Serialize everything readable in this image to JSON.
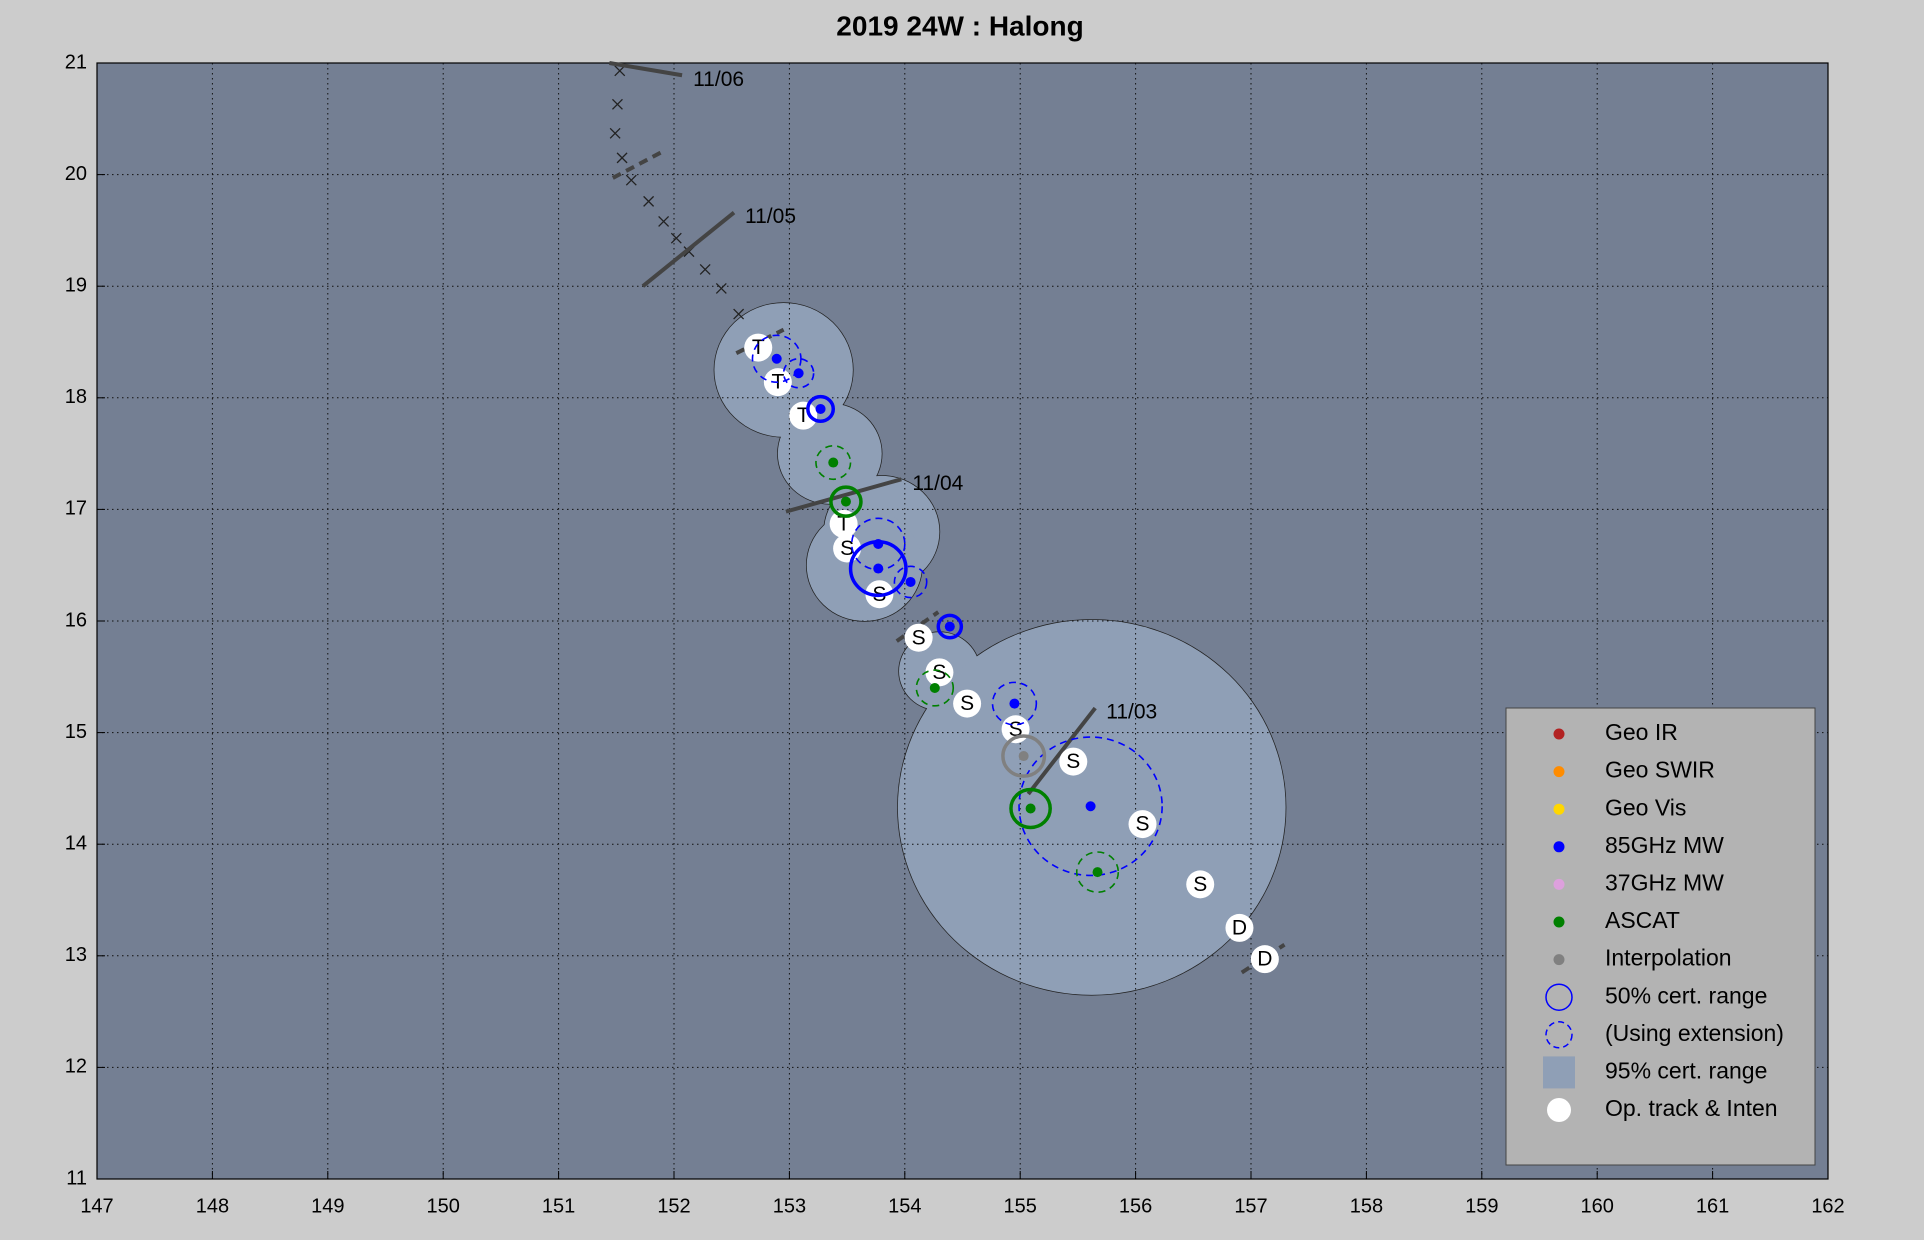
{
  "chart_data": {
    "type": "scatter",
    "title": "2019  24W :  Halong",
    "xlim": [
      147,
      162
    ],
    "ylim": [
      11,
      21
    ],
    "xticks": [
      147,
      148,
      149,
      150,
      151,
      152,
      153,
      154,
      155,
      156,
      157,
      158,
      159,
      160,
      161,
      162
    ],
    "yticks": [
      11,
      12,
      13,
      14,
      15,
      16,
      17,
      18,
      19,
      20,
      21
    ],
    "grid": true,
    "legend": "lower right",
    "background": "#747f93",
    "series": [
      {
        "name": "Geo IR",
        "color": "#b22222",
        "x": [],
        "y": [],
        "radius": [],
        "dashed": []
      },
      {
        "name": "Geo SWIR",
        "color": "#ff8c00",
        "x": [],
        "y": [],
        "radius": [],
        "dashed": []
      },
      {
        "name": "Geo Vis",
        "color": "#ffd700",
        "x": [],
        "y": [],
        "radius": [],
        "dashed": []
      },
      {
        "name": "85GHz MW",
        "color": "#0000ff",
        "x": [
          152.89,
          153.08,
          153.27,
          153.77,
          153.77,
          154.05,
          154.39,
          154.95,
          155.61
        ],
        "y": [
          18.35,
          18.22,
          17.9,
          16.69,
          16.47,
          16.35,
          15.95,
          15.26,
          14.34
        ],
        "radius": [
          0.21,
          0.13,
          0.11,
          0.23,
          0.24,
          0.14,
          0.1,
          0.19,
          0.62
        ],
        "dashed": [
          true,
          true,
          false,
          true,
          false,
          true,
          false,
          true,
          true
        ]
      },
      {
        "name": "37GHz MW",
        "color": "#dda0dd",
        "x": [],
        "y": [],
        "radius": [],
        "dashed": []
      },
      {
        "name": "ASCAT",
        "color": "#008000",
        "x": [
          153.38,
          153.49,
          154.26,
          155.09,
          155.67
        ],
        "y": [
          17.42,
          17.07,
          15.4,
          14.32,
          13.75
        ],
        "radius": [
          0.15,
          0.13,
          0.16,
          0.17,
          0.18
        ],
        "dashed": [
          true,
          false,
          true,
          false,
          true
        ]
      },
      {
        "name": "Interpolation",
        "color": "#808080",
        "x": [
          155.03
        ],
        "y": [
          14.79
        ],
        "radius": [
          0.18
        ],
        "dashed": [
          false
        ]
      }
    ],
    "cert_50": {
      "name": "50% cert. range",
      "color": "#0000ff"
    },
    "cert_ext": {
      "name": "(Using extension)",
      "color": "#0000ff"
    },
    "cert_95": {
      "name": "95% cert. range",
      "color": "#8f9fb6",
      "x": [
        152.95,
        153.35,
        153.8,
        153.65,
        154.3,
        155.62
      ],
      "y": [
        18.25,
        17.5,
        16.8,
        16.5,
        15.55,
        14.33
      ],
      "radius": [
        0.6,
        0.45,
        0.5,
        0.5,
        0.35,
        1.68
      ]
    },
    "track": {
      "name": "Op. track & Inten",
      "color": "#ffffff",
      "x": [
        152.73,
        152.9,
        153.12,
        153.47,
        153.5,
        153.78,
        154.12,
        154.3,
        154.54,
        154.96,
        155.46,
        156.06,
        156.56,
        156.9,
        157.12
      ],
      "y": [
        18.45,
        18.14,
        17.84,
        16.87,
        16.65,
        16.24,
        15.85,
        15.54,
        15.26,
        15.03,
        14.74,
        14.18,
        13.64,
        13.25,
        12.97
      ],
      "labels": [
        "T",
        "T",
        "T",
        "T",
        "S",
        "S",
        "S",
        "S",
        "S",
        "S",
        "S",
        "S",
        "S",
        "D",
        "D"
      ]
    },
    "forecast": {
      "x": [
        151.53,
        151.51,
        151.49,
        151.55,
        151.63,
        151.78,
        151.91,
        152.02,
        152.13,
        152.27,
        152.41,
        152.56
      ],
      "y": [
        20.93,
        20.63,
        20.37,
        20.15,
        19.95,
        19.76,
        19.58,
        19.43,
        19.31,
        19.15,
        18.98,
        18.75
      ]
    },
    "dates": [
      {
        "label": "11/06",
        "x": [
          151.44,
          152.07
        ],
        "y": [
          21.0,
          20.89
        ]
      },
      {
        "label": "11/05",
        "x": [
          151.73,
          152.52
        ],
        "y": [
          19.0,
          19.66
        ]
      },
      {
        "label": "11/04",
        "x": [
          152.97,
          153.97
        ],
        "y": [
          16.98,
          17.27
        ]
      },
      {
        "label": "11/03",
        "x": [
          155.07,
          155.65
        ],
        "y": [
          14.45,
          15.22
        ]
      }
    ],
    "extension_marks": [
      {
        "x": [
          151.47,
          151.89
        ],
        "y": [
          19.97,
          20.2
        ]
      },
      {
        "x": [
          152.54,
          152.95
        ],
        "y": [
          18.4,
          18.61
        ]
      },
      {
        "x": [
          153.93,
          154.29
        ],
        "y": [
          15.82,
          16.08
        ]
      },
      {
        "x": [
          156.92,
          157.29
        ],
        "y": [
          12.85,
          13.1
        ]
      }
    ]
  }
}
